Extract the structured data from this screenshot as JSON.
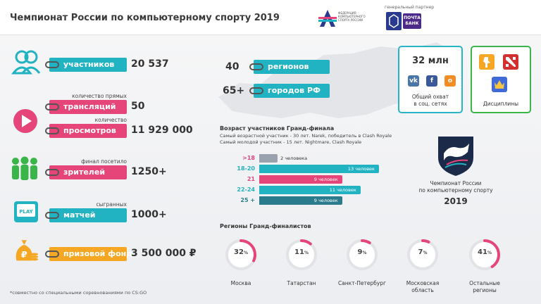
{
  "header": {
    "title": "Чемпионат России по компьютерному спорту 2019",
    "federation_text": "ФЕДЕРАЦИЯ КОМПЬЮТЕРНОГО СПОРТА РОССИИ",
    "sponsor_caption": "генеральный партнер",
    "sponsor_name": "ПОЧТА БАНК"
  },
  "stats": {
    "participants": {
      "label": "участников",
      "value": "20 537"
    },
    "broadcasts": {
      "caption": "количество прямых",
      "label": "трансляций",
      "value": "50"
    },
    "views": {
      "caption": "количество",
      "label": "просмотров",
      "value": "11 929 000"
    },
    "spectators": {
      "caption": "финал посетило",
      "label": "зрителей",
      "value": "1250+"
    },
    "matches": {
      "caption": "сыгранных",
      "label": "матчей",
      "value": "1000+"
    },
    "prize": {
      "label": "призовой фонд",
      "value": "3 500 000 ₽"
    },
    "regions": {
      "value": "40",
      "label": "регионов"
    },
    "cities": {
      "value": "65+",
      "label": "городов РФ"
    }
  },
  "social": {
    "reach": "32 млн",
    "caption_line1": "Общий охват",
    "caption_line2": "в соц. сетях",
    "icons": [
      "vk-icon",
      "facebook-icon",
      "odnoklassniki-icon"
    ]
  },
  "disciplines": {
    "caption": "Дисциплины",
    "icons": [
      "cs-go-icon",
      "dota-2-icon",
      "clash-royale-icon"
    ]
  },
  "age": {
    "title": "Возраст участников Гранд-финала",
    "oldest": "Самый возрастной участник - 30 лет. Narek, победитель в Clash Royale",
    "youngest": "Самый молодой участник - 15 лет. Nightmare, Clash Royale",
    "rows": [
      {
        "label": ">18",
        "count": 2,
        "text": "2 человека",
        "color": "#9aa3ad"
      },
      {
        "label": "18-20",
        "count": 13,
        "text": "13 человек",
        "color": "#22b3c2"
      },
      {
        "label": "21",
        "count": 9,
        "text": "9 человек",
        "color": "#e6457a"
      },
      {
        "label": "22-24",
        "count": 11,
        "text": "11 человек",
        "color": "#22b3c2"
      },
      {
        "label": "25 +",
        "count": 9,
        "text": "9 человек",
        "color": "#2a7c8c"
      }
    ]
  },
  "emblem": {
    "line1": "Чемпионат России",
    "line2": "по компьютерному спорту",
    "year": "2019"
  },
  "regions_block": {
    "title": "Регионы Гранд-финалистов",
    "items": [
      {
        "percent": 32,
        "name1": "Москва",
        "name2": "",
        "color": "#e6457a"
      },
      {
        "percent": 11,
        "name1": "Татарстан",
        "name2": "",
        "color": "#e6457a"
      },
      {
        "percent": 9,
        "name1": "Санкт-Петербург",
        "name2": "",
        "color": "#e6457a"
      },
      {
        "percent": 7,
        "name1": "Московская",
        "name2": "область",
        "color": "#e6457a"
      },
      {
        "percent": 41,
        "name1": "Остальные",
        "name2": "регионы",
        "color": "#e6457a"
      }
    ]
  },
  "footnote": "*совместно со специальными соревнованиями по CS:GO"
}
